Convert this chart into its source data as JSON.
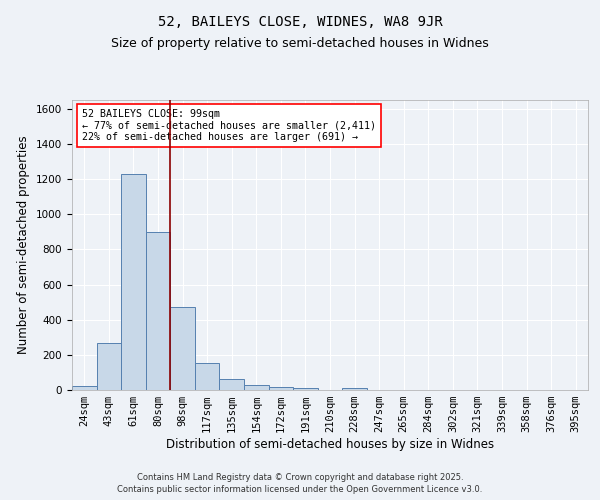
{
  "title_line1": "52, BAILEYS CLOSE, WIDNES, WA8 9JR",
  "title_line2": "Size of property relative to semi-detached houses in Widnes",
  "xlabel": "Distribution of semi-detached houses by size in Widnes",
  "ylabel": "Number of semi-detached properties",
  "categories": [
    "24sqm",
    "43sqm",
    "61sqm",
    "80sqm",
    "98sqm",
    "117sqm",
    "135sqm",
    "154sqm",
    "172sqm",
    "191sqm",
    "210sqm",
    "228sqm",
    "247sqm",
    "265sqm",
    "284sqm",
    "302sqm",
    "321sqm",
    "339sqm",
    "358sqm",
    "376sqm",
    "395sqm"
  ],
  "values": [
    25,
    265,
    1230,
    900,
    475,
    152,
    65,
    28,
    18,
    10,
    0,
    10,
    0,
    0,
    0,
    0,
    0,
    0,
    0,
    0,
    0
  ],
  "bar_color": "#c8d8e8",
  "bar_edge_color": "#5580b0",
  "vline_color": "#8b0000",
  "vline_index": 3.5,
  "annotation_text": "52 BAILEYS CLOSE: 99sqm\n← 77% of semi-detached houses are smaller (2,411)\n22% of semi-detached houses are larger (691) →",
  "ylim": [
    0,
    1650
  ],
  "yticks": [
    0,
    200,
    400,
    600,
    800,
    1000,
    1200,
    1400,
    1600
  ],
  "footnote1": "Contains HM Land Registry data © Crown copyright and database right 2025.",
  "footnote2": "Contains public sector information licensed under the Open Government Licence v3.0.",
  "background_color": "#eef2f7",
  "grid_color": "#ffffff",
  "title_fontsize": 10,
  "subtitle_fontsize": 9,
  "axis_label_fontsize": 8.5,
  "tick_fontsize": 7.5,
  "footnote_fontsize": 6
}
